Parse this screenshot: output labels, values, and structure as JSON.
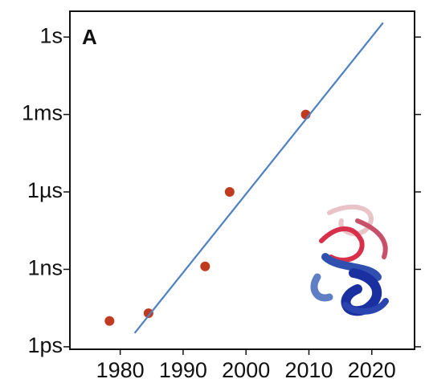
{
  "chart_data": {
    "type": "scatter",
    "panel_label": "A",
    "ylog": true,
    "xlim": [
      1972,
      2026.8
    ],
    "xticks": [
      1980,
      1990,
      2000,
      2010,
      2020
    ],
    "ylim": [
      8e-13,
      10
    ],
    "yticks": [
      {
        "value": 1e-12,
        "label": "1ps"
      },
      {
        "value": 1e-09,
        "label": "1ns"
      },
      {
        "value": 1e-06,
        "label": "1µs"
      },
      {
        "value": 0.001,
        "label": "1ms"
      },
      {
        "value": 1,
        "label": "1s"
      }
    ],
    "series": [
      {
        "type": "scatter",
        "color": "#bf3a1e",
        "x": [
          1978.3,
          1984.5,
          1993.5,
          1997.4,
          2009.5
        ],
        "values": [
          1e-11,
          2e-11,
          1.3e-09,
          1e-06,
          0.001
        ]
      },
      {
        "type": "line",
        "color": "#4f80c0",
        "x": [
          1982.3,
          2021.8
        ],
        "values": [
          3.4e-12,
          3.6
        ]
      }
    ]
  }
}
